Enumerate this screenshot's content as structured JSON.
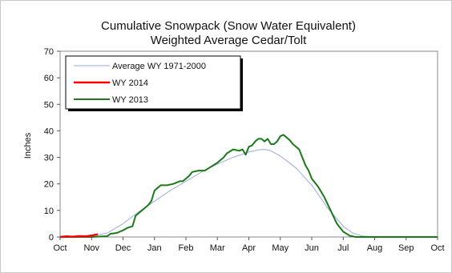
{
  "chart_data": {
    "type": "line",
    "title_line1": "Cumulative Snowpack (Snow Water Equivalent)",
    "title_line2": "Weighted Average Cedar/Tolt",
    "ylabel": "Inches",
    "xlabel": "",
    "ylim": [
      0,
      70
    ],
    "yticks": [
      "0",
      "10",
      "20",
      "30",
      "40",
      "50",
      "60",
      "70"
    ],
    "x_range": [
      0,
      12
    ],
    "xticks": [
      "Oct",
      "Nov",
      "Dec",
      "Jan",
      "Feb",
      "Mar",
      "Apr",
      "May",
      "Jun",
      "Jul",
      "Aug",
      "Sep",
      "Oct"
    ],
    "grid": false,
    "legend_position": "top-left",
    "series": [
      {
        "name": "Average WY 1971-2000",
        "color": "#9aa8e0",
        "width": 1,
        "points": [
          [
            0,
            0
          ],
          [
            1.0,
            0.3
          ],
          [
            1.5,
            1.5
          ],
          [
            2.0,
            5
          ],
          [
            2.5,
            9.5
          ],
          [
            3.0,
            13.5
          ],
          [
            3.5,
            17.5
          ],
          [
            4.0,
            21
          ],
          [
            4.5,
            24.5
          ],
          [
            5.0,
            27.5
          ],
          [
            5.5,
            30
          ],
          [
            6.0,
            32
          ],
          [
            6.3,
            32.8
          ],
          [
            6.5,
            33
          ],
          [
            6.7,
            32.5
          ],
          [
            7.0,
            30.5
          ],
          [
            7.5,
            26
          ],
          [
            8.0,
            19.5
          ],
          [
            8.5,
            11
          ],
          [
            9.0,
            4
          ],
          [
            9.3,
            1.5
          ],
          [
            9.6,
            0.4
          ],
          [
            10.0,
            0
          ],
          [
            12.0,
            0
          ]
        ]
      },
      {
        "name": "WY 2014",
        "color": "#ff0000",
        "width": 2.5,
        "points": [
          [
            0,
            0
          ],
          [
            0.2,
            0.2
          ],
          [
            0.4,
            0.1
          ],
          [
            0.6,
            0.3
          ],
          [
            0.8,
            0.2
          ],
          [
            1.0,
            0.5
          ],
          [
            1.1,
            0.8
          ],
          [
            1.2,
            1.0
          ]
        ]
      },
      {
        "name": "WY 2013",
        "color": "#1a7a1a",
        "width": 2,
        "points": [
          [
            0,
            0
          ],
          [
            1.0,
            0
          ],
          [
            1.5,
            0.3
          ],
          [
            1.6,
            1.2
          ],
          [
            1.8,
            1.5
          ],
          [
            2.0,
            2.5
          ],
          [
            2.15,
            3.5
          ],
          [
            2.3,
            4
          ],
          [
            2.4,
            8
          ],
          [
            2.6,
            10
          ],
          [
            2.8,
            12
          ],
          [
            2.9,
            13.5
          ],
          [
            3.0,
            17.5
          ],
          [
            3.1,
            18.5
          ],
          [
            3.2,
            19.5
          ],
          [
            3.4,
            19.5
          ],
          [
            3.6,
            20
          ],
          [
            3.8,
            21
          ],
          [
            3.9,
            21
          ],
          [
            4.0,
            22
          ],
          [
            4.1,
            23
          ],
          [
            4.2,
            24.5
          ],
          [
            4.4,
            25
          ],
          [
            4.6,
            25
          ],
          [
            4.8,
            26.5
          ],
          [
            5.0,
            28
          ],
          [
            5.2,
            30
          ],
          [
            5.3,
            31.5
          ],
          [
            5.5,
            33
          ],
          [
            5.7,
            32.5
          ],
          [
            5.8,
            33
          ],
          [
            5.9,
            31
          ],
          [
            6.0,
            34
          ],
          [
            6.1,
            34.5
          ],
          [
            6.2,
            36
          ],
          [
            6.3,
            37
          ],
          [
            6.4,
            37
          ],
          [
            6.5,
            36
          ],
          [
            6.6,
            37
          ],
          [
            6.7,
            35
          ],
          [
            6.8,
            35
          ],
          [
            6.9,
            36
          ],
          [
            7.0,
            38
          ],
          [
            7.1,
            38.5
          ],
          [
            7.2,
            37.5
          ],
          [
            7.3,
            36.5
          ],
          [
            7.4,
            35
          ],
          [
            7.5,
            34
          ],
          [
            7.6,
            33
          ],
          [
            7.7,
            30
          ],
          [
            7.8,
            27
          ],
          [
            7.9,
            25
          ],
          [
            8.0,
            22
          ],
          [
            8.2,
            19
          ],
          [
            8.4,
            15
          ],
          [
            8.6,
            10
          ],
          [
            8.8,
            5
          ],
          [
            9.0,
            2
          ],
          [
            9.2,
            0.5
          ],
          [
            9.4,
            0
          ],
          [
            12.0,
            0
          ]
        ]
      }
    ]
  }
}
